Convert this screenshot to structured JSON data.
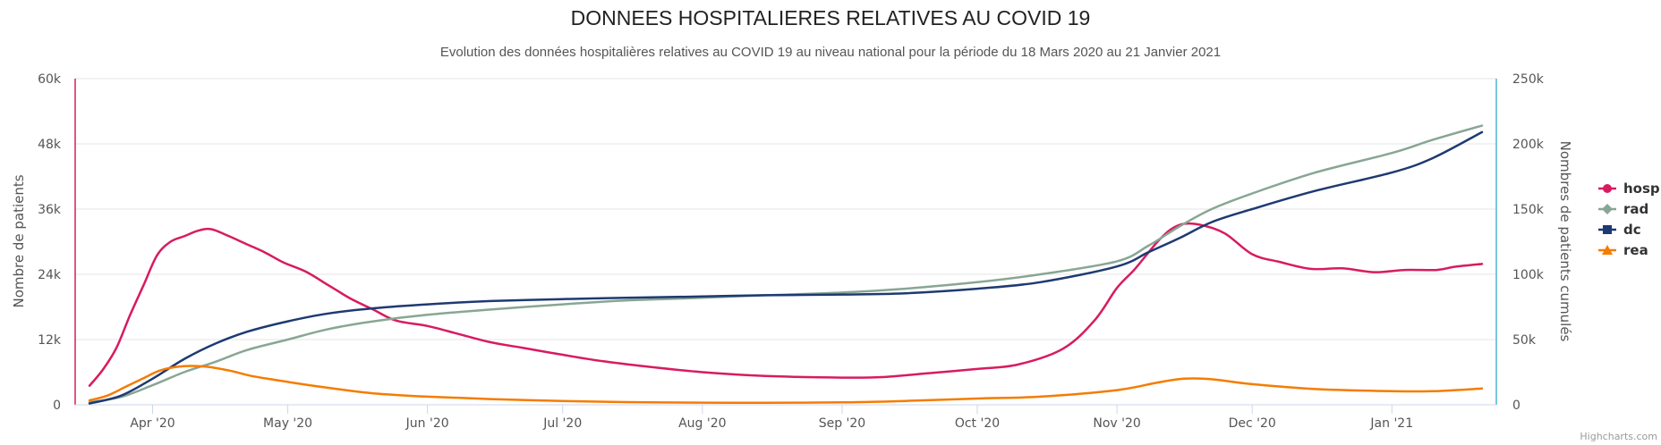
{
  "chart_data": {
    "type": "line",
    "title": "DONNEES HOSPITALIERES RELATIVES AU COVID 19",
    "subtitle": "Evolution des données hospitalières relatives au COVID 19 au niveau national pour la période du 18 Mars 2020 au 21 Janvier 2021",
    "ylabel": "Nombre de patients",
    "y2label": "Nombres de patients cumulés",
    "ylim": [
      0,
      60000
    ],
    "y2lim": [
      0,
      250000
    ],
    "y_ticks": [
      "0",
      "12k",
      "24k",
      "36k",
      "48k",
      "60k"
    ],
    "y2_ticks": [
      "0",
      "50k",
      "100k",
      "150k",
      "200k",
      "250k"
    ],
    "x_tick_labels": [
      "Apr '20",
      "May '20",
      "Jun '20",
      "Jul '20",
      "Aug '20",
      "Sep '20",
      "Oct '20",
      "Nov '20",
      "Dec '20",
      "Jan '21"
    ],
    "x_tick_dates": [
      "2020-04-01",
      "2020-05-01",
      "2020-06-01",
      "2020-07-01",
      "2020-08-01",
      "2020-09-01",
      "2020-10-01",
      "2020-11-01",
      "2020-12-01",
      "2021-01-01"
    ],
    "xlim": [
      "2020-03-18",
      "2021-01-21"
    ],
    "grid": true,
    "legend_position": "right",
    "credits": "Highcharts.com",
    "series": [
      {
        "name": "hosp",
        "axis": "left",
        "color": "#d81b60",
        "marker": "circle",
        "x": [
          "2020-03-18",
          "2020-03-21",
          "2020-03-24",
          "2020-03-27",
          "2020-03-30",
          "2020-04-02",
          "2020-04-05",
          "2020-04-08",
          "2020-04-11",
          "2020-04-14",
          "2020-04-18",
          "2020-04-22",
          "2020-04-26",
          "2020-04-30",
          "2020-05-05",
          "2020-05-10",
          "2020-05-15",
          "2020-05-20",
          "2020-05-25",
          "2020-06-01",
          "2020-06-08",
          "2020-06-15",
          "2020-06-22",
          "2020-07-01",
          "2020-07-10",
          "2020-07-20",
          "2020-08-01",
          "2020-08-15",
          "2020-09-01",
          "2020-09-10",
          "2020-09-20",
          "2020-10-01",
          "2020-10-10",
          "2020-10-20",
          "2020-10-27",
          "2020-11-01",
          "2020-11-05",
          "2020-11-10",
          "2020-11-13",
          "2020-11-16",
          "2020-11-20",
          "2020-11-25",
          "2020-12-01",
          "2020-12-07",
          "2020-12-14",
          "2020-12-21",
          "2020-12-28",
          "2021-01-04",
          "2021-01-11",
          "2021-01-15",
          "2021-01-21"
        ],
        "y": [
          3500,
          6500,
          10500,
          16500,
          22000,
          27500,
          30000,
          31000,
          32000,
          32300,
          31000,
          29500,
          28000,
          26200,
          24500,
          22000,
          19500,
          17500,
          15500,
          14500,
          13000,
          11500,
          10500,
          9200,
          8000,
          7000,
          6000,
          5300,
          5000,
          5100,
          5800,
          6600,
          7400,
          10300,
          15500,
          21500,
          25000,
          30000,
          32300,
          33300,
          33000,
          31500,
          27700,
          26300,
          25000,
          25100,
          24400,
          24800,
          24800,
          25400,
          25900
        ]
      },
      {
        "name": "rad",
        "axis": "right",
        "color": "#88a694",
        "marker": "diamond",
        "x": [
          "2020-03-18",
          "2020-03-25",
          "2020-04-01",
          "2020-04-08",
          "2020-04-15",
          "2020-04-22",
          "2020-05-01",
          "2020-05-10",
          "2020-05-20",
          "2020-06-01",
          "2020-06-15",
          "2020-07-01",
          "2020-07-15",
          "2020-08-01",
          "2020-08-15",
          "2020-09-01",
          "2020-09-15",
          "2020-10-01",
          "2020-10-15",
          "2020-11-01",
          "2020-11-08",
          "2020-11-15",
          "2020-11-22",
          "2020-12-01",
          "2020-12-15",
          "2021-01-01",
          "2021-01-10",
          "2021-01-21"
        ],
        "y": [
          2000,
          6000,
          15000,
          25000,
          33000,
          42000,
          50000,
          58000,
          64000,
          69000,
          73000,
          77000,
          80000,
          82000,
          84000,
          86000,
          89000,
          94000,
          100000,
          110000,
          122000,
          137000,
          150000,
          162000,
          178000,
          193000,
          203000,
          214000
        ]
      },
      {
        "name": "dc",
        "axis": "right",
        "color": "#1e3a72",
        "marker": "square",
        "x": [
          "2020-03-18",
          "2020-03-25",
          "2020-04-01",
          "2020-04-08",
          "2020-04-15",
          "2020-04-22",
          "2020-05-01",
          "2020-05-10",
          "2020-05-20",
          "2020-06-01",
          "2020-06-15",
          "2020-07-01",
          "2020-07-15",
          "2020-08-01",
          "2020-08-15",
          "2020-09-01",
          "2020-09-15",
          "2020-10-01",
          "2020-10-15",
          "2020-11-01",
          "2020-11-08",
          "2020-11-15",
          "2020-11-22",
          "2020-12-01",
          "2020-12-15",
          "2021-01-01",
          "2021-01-10",
          "2021-01-21"
        ],
        "y": [
          1000,
          7000,
          20000,
          35000,
          47000,
          56000,
          64000,
          70000,
          74000,
          77000,
          79500,
          81000,
          82000,
          83000,
          84000,
          84500,
          85500,
          89000,
          94000,
          106000,
          117000,
          128000,
          140000,
          150000,
          164000,
          178000,
          189000,
          209000
        ]
      },
      {
        "name": "rea",
        "axis": "left",
        "color": "#f57c00",
        "marker": "triangle",
        "x": [
          "2020-03-18",
          "2020-03-22",
          "2020-03-26",
          "2020-03-30",
          "2020-04-03",
          "2020-04-08",
          "2020-04-13",
          "2020-04-18",
          "2020-04-23",
          "2020-04-28",
          "2020-05-05",
          "2020-05-12",
          "2020-05-20",
          "2020-06-01",
          "2020-06-15",
          "2020-07-01",
          "2020-07-15",
          "2020-08-01",
          "2020-08-15",
          "2020-09-01",
          "2020-09-15",
          "2020-10-01",
          "2020-10-15",
          "2020-11-01",
          "2020-11-10",
          "2020-11-16",
          "2020-11-22",
          "2020-12-01",
          "2020-12-15",
          "2021-01-01",
          "2021-01-10",
          "2021-01-21"
        ],
        "y": [
          800,
          1700,
          3300,
          4900,
          6400,
          7100,
          7000,
          6300,
          5300,
          4600,
          3700,
          2900,
          2100,
          1500,
          1050,
          700,
          500,
          400,
          380,
          450,
          700,
          1150,
          1500,
          2700,
          4100,
          4800,
          4700,
          3800,
          2900,
          2500,
          2500,
          3000
        ]
      }
    ]
  }
}
